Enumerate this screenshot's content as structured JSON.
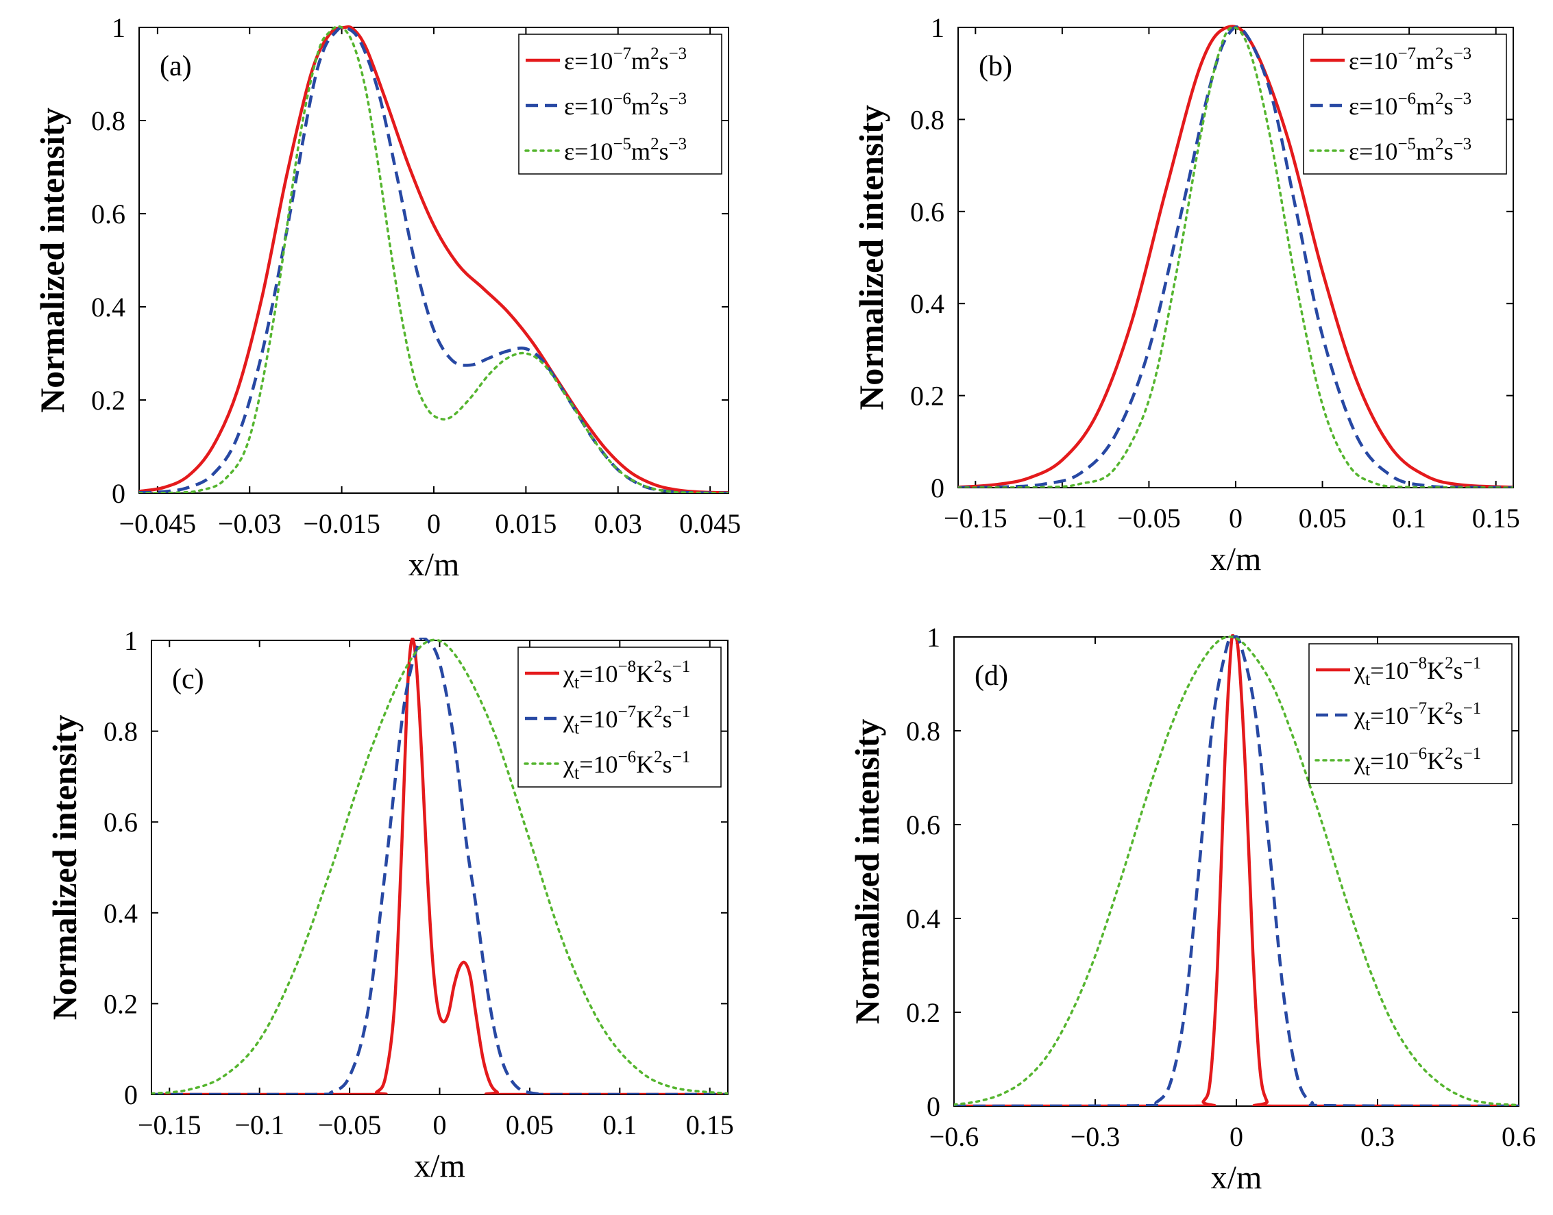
{
  "figure": {
    "title": ""
  },
  "colors": {
    "red": "#e41a1c",
    "blue": "#2748a3",
    "green": "#55b52f"
  },
  "chart_data": [
    {
      "type": "line",
      "panel_label": "(a)",
      "xlabel": "x/m",
      "ylabel": "Normalized intensity",
      "xlim": [
        -0.048,
        0.048
      ],
      "ylim": [
        0,
        1
      ],
      "xticks": [
        -0.045,
        -0.03,
        -0.015,
        0,
        0.015,
        0.03,
        0.045
      ],
      "xtick_labels": [
        "−0.045",
        "−0.03",
        "−0.015",
        "0",
        "0.015",
        "0.03",
        "0.045"
      ],
      "yticks": [
        0,
        0.2,
        0.4,
        0.6,
        0.8,
        1
      ],
      "ytick_labels": [
        "0",
        "0.2",
        "0.4",
        "0.6",
        "0.8",
        "1"
      ],
      "legend": {
        "location": "top-right"
      },
      "series": [
        {
          "name": "ε=10⁻⁷m²s⁻³",
          "legend": {
            "sym": "ε",
            "sub": "",
            "mid": "=10",
            "exp": "−7",
            "unit1": "m",
            "exp1": "2",
            "unit2": "s",
            "exp2": "−3"
          },
          "color": "#e41a1c",
          "dash": "solid",
          "x": [
            -0.048,
            -0.044,
            -0.04,
            -0.036,
            -0.032,
            -0.028,
            -0.024,
            -0.02,
            -0.017,
            -0.0145,
            -0.013,
            -0.011,
            -0.008,
            -0.004,
            0,
            0.004,
            0.008,
            0.012,
            0.016,
            0.02,
            0.024,
            0.028,
            0.032,
            0.036,
            0.04,
            0.044,
            0.048
          ],
          "y": [
            0.004,
            0.012,
            0.037,
            0.1,
            0.22,
            0.42,
            0.68,
            0.9,
            0.985,
            1.0,
            0.995,
            0.955,
            0.85,
            0.7,
            0.575,
            0.49,
            0.44,
            0.39,
            0.325,
            0.245,
            0.165,
            0.095,
            0.045,
            0.018,
            0.006,
            0.002,
            0.001
          ]
        },
        {
          "name": "ε=10⁻⁶m²s⁻³",
          "legend": {
            "sym": "ε",
            "sub": "",
            "mid": "=10",
            "exp": "−6",
            "unit1": "m",
            "exp1": "2",
            "unit2": "s",
            "exp2": "−3"
          },
          "color": "#2748a3",
          "dash": "dashed",
          "x": [
            -0.048,
            -0.044,
            -0.04,
            -0.036,
            -0.032,
            -0.028,
            -0.024,
            -0.02,
            -0.018,
            -0.016,
            -0.0145,
            -0.012,
            -0.009,
            -0.006,
            -0.003,
            0,
            0.003,
            0.006,
            0.009,
            0.012,
            0.015,
            0.018,
            0.022,
            0.026,
            0.03,
            0.034,
            0.038,
            0.042,
            0.048
          ],
          "y": [
            0.001,
            0.003,
            0.012,
            0.04,
            0.12,
            0.3,
            0.56,
            0.85,
            0.95,
            0.99,
            1.0,
            0.97,
            0.86,
            0.68,
            0.49,
            0.35,
            0.285,
            0.275,
            0.29,
            0.305,
            0.31,
            0.28,
            0.2,
            0.115,
            0.05,
            0.016,
            0.004,
            0.001,
            0.0
          ]
        },
        {
          "name": "ε=10⁻⁵m²s⁻³",
          "legend": {
            "sym": "ε",
            "sub": "",
            "mid": "=10",
            "exp": "−5",
            "unit1": "m",
            "exp1": "2",
            "unit2": "s",
            "exp2": "−3"
          },
          "color": "#55b52f",
          "dash": "dotted",
          "x": [
            -0.048,
            -0.042,
            -0.038,
            -0.034,
            -0.03,
            -0.026,
            -0.022,
            -0.019,
            -0.017,
            -0.015,
            -0.013,
            -0.011,
            -0.009,
            -0.007,
            -0.005,
            -0.003,
            -0.001,
            0.001,
            0.003,
            0.006,
            0.009,
            0.012,
            0.015,
            0.018,
            0.022,
            0.026,
            0.03,
            0.034,
            0.038,
            0.042,
            0.048
          ],
          "y": [
            0.0,
            0.001,
            0.006,
            0.03,
            0.12,
            0.38,
            0.75,
            0.94,
            0.99,
            1.0,
            0.96,
            0.86,
            0.7,
            0.52,
            0.36,
            0.24,
            0.18,
            0.16,
            0.165,
            0.205,
            0.255,
            0.29,
            0.3,
            0.275,
            0.2,
            0.115,
            0.05,
            0.017,
            0.004,
            0.001,
            0.0
          ]
        }
      ]
    },
    {
      "type": "line",
      "panel_label": "(b)",
      "xlabel": "x/m",
      "ylabel": "Normalized intensity",
      "xlim": [
        -0.16,
        0.16
      ],
      "ylim": [
        0,
        1
      ],
      "xticks": [
        -0.15,
        -0.1,
        -0.05,
        0,
        0.05,
        0.1,
        0.15
      ],
      "xtick_labels": [
        "−0.15",
        "−0.1",
        "−0.05",
        "0",
        "0.05",
        "0.1",
        "0.15"
      ],
      "yticks": [
        0,
        0.2,
        0.4,
        0.6,
        0.8,
        1
      ],
      "ytick_labels": [
        "0",
        "0.2",
        "0.4",
        "0.6",
        "0.8",
        "1"
      ],
      "legend": {
        "location": "top-right"
      },
      "series": [
        {
          "name": "ε=10⁻⁷m²s⁻³",
          "legend": {
            "sym": "ε",
            "sub": "",
            "mid": "=10",
            "exp": "−7",
            "unit1": "m",
            "exp1": "2",
            "unit2": "s",
            "exp2": "−3"
          },
          "color": "#e41a1c",
          "dash": "solid",
          "x": [
            -0.16,
            -0.14,
            -0.12,
            -0.1,
            -0.08,
            -0.06,
            -0.04,
            -0.02,
            -0.005,
            0.01,
            0.03,
            0.05,
            0.07,
            0.09,
            0.11,
            0.13,
            0.16
          ],
          "y": [
            0.001,
            0.006,
            0.02,
            0.06,
            0.16,
            0.36,
            0.65,
            0.92,
            1.0,
            0.96,
            0.76,
            0.47,
            0.23,
            0.085,
            0.025,
            0.006,
            0.001
          ]
        },
        {
          "name": "ε=10⁻⁶m²s⁻³",
          "legend": {
            "sym": "ε",
            "sub": "",
            "mid": "=10",
            "exp": "−6",
            "unit1": "m",
            "exp1": "2",
            "unit2": "s",
            "exp2": "−3"
          },
          "color": "#2748a3",
          "dash": "dashed",
          "x": [
            -0.16,
            -0.13,
            -0.11,
            -0.09,
            -0.07,
            -0.05,
            -0.03,
            -0.015,
            -0.005,
            0.005,
            0.02,
            0.035,
            0.05,
            0.07,
            0.09,
            0.11,
            0.13,
            0.16
          ],
          "y": [
            0.0,
            0.002,
            0.008,
            0.03,
            0.11,
            0.3,
            0.62,
            0.87,
            0.98,
            0.99,
            0.86,
            0.6,
            0.33,
            0.11,
            0.025,
            0.004,
            0.001,
            0.0
          ]
        },
        {
          "name": "ε=10⁻⁵m²s⁻³",
          "legend": {
            "sym": "ε",
            "sub": "",
            "mid": "=10",
            "exp": "−5",
            "unit1": "m",
            "exp1": "2",
            "unit2": "s",
            "exp2": "−3"
          },
          "color": "#55b52f",
          "dash": "dotted",
          "x": [
            -0.16,
            -0.11,
            -0.09,
            -0.07,
            -0.05,
            -0.035,
            -0.02,
            -0.01,
            -0.002,
            0.008,
            0.02,
            0.035,
            0.05,
            0.065,
            0.08,
            0.1,
            0.16
          ],
          "y": [
            0.0,
            0.001,
            0.008,
            0.04,
            0.19,
            0.45,
            0.77,
            0.94,
            1.0,
            0.95,
            0.76,
            0.44,
            0.18,
            0.05,
            0.01,
            0.001,
            0.0
          ]
        }
      ]
    },
    {
      "type": "line",
      "panel_label": "(c)",
      "xlabel": "x/m",
      "ylabel": "Normalized intensity",
      "xlim": [
        -0.16,
        0.16
      ],
      "ylim": [
        0,
        1
      ],
      "xticks": [
        -0.15,
        -0.1,
        -0.05,
        0,
        0.05,
        0.1,
        0.15
      ],
      "xtick_labels": [
        "−0.15",
        "−0.1",
        "−0.05",
        "0",
        "0.05",
        "0.1",
        "0.15"
      ],
      "yticks": [
        0,
        0.2,
        0.4,
        0.6,
        0.8,
        1
      ],
      "ytick_labels": [
        "0",
        "0.2",
        "0.4",
        "0.6",
        "0.8",
        "1"
      ],
      "legend": {
        "location": "top-right"
      },
      "series": [
        {
          "name": "χt=10⁻⁸K²s⁻¹",
          "legend": {
            "sym": "χ",
            "sub": "t",
            "mid": "=10",
            "exp": "−8",
            "unit1": "K",
            "exp1": "2",
            "unit2": "s",
            "exp2": "−1"
          },
          "color": "#e41a1c",
          "dash": "solid",
          "x": [
            -0.16,
            -0.04,
            -0.035,
            -0.03,
            -0.025,
            -0.021,
            -0.018,
            -0.0155,
            -0.013,
            -0.01,
            -0.007,
            -0.004,
            -0.001,
            0.002,
            0.005,
            0.008,
            0.011,
            0.014,
            0.017,
            0.02,
            0.024,
            0.028,
            0.032,
            0.036,
            0.16
          ],
          "y": [
            0.0,
            0.0,
            0.005,
            0.04,
            0.2,
            0.55,
            0.88,
            1.0,
            0.95,
            0.75,
            0.5,
            0.3,
            0.19,
            0.16,
            0.18,
            0.24,
            0.28,
            0.29,
            0.26,
            0.18,
            0.08,
            0.025,
            0.005,
            0.0,
            0.0
          ]
        },
        {
          "name": "χt=10⁻⁷K²s⁻¹",
          "legend": {
            "sym": "χ",
            "sub": "t",
            "mid": "=10",
            "exp": "−7",
            "unit1": "K",
            "exp1": "2",
            "unit2": "s",
            "exp2": "−1"
          },
          "color": "#2748a3",
          "dash": "dashed",
          "x": [
            -0.16,
            -0.07,
            -0.06,
            -0.05,
            -0.04,
            -0.03,
            -0.02,
            -0.012,
            -0.007,
            0,
            0.008,
            0.015,
            0.02,
            0.025,
            0.03,
            0.035,
            0.04,
            0.045,
            0.05,
            0.055,
            0.06,
            0.16
          ],
          "y": [
            0.0,
            0.0,
            0.005,
            0.04,
            0.18,
            0.5,
            0.85,
            0.99,
            1.0,
            0.95,
            0.78,
            0.55,
            0.42,
            0.27,
            0.15,
            0.07,
            0.03,
            0.01,
            0.004,
            0.001,
            0.0,
            0.0
          ]
        },
        {
          "name": "χt=10⁻⁶K²s⁻¹",
          "legend": {
            "sym": "χ",
            "sub": "t",
            "mid": "=10",
            "exp": "−6",
            "unit1": "K",
            "exp1": "2",
            "unit2": "s",
            "exp2": "−1"
          },
          "color": "#55b52f",
          "dash": "dotted",
          "x": [
            -0.16,
            -0.14,
            -0.12,
            -0.1,
            -0.08,
            -0.06,
            -0.04,
            -0.02,
            -0.005,
            0.01,
            0.03,
            0.05,
            0.07,
            0.09,
            0.11,
            0.13,
            0.16
          ],
          "y": [
            0.002,
            0.01,
            0.04,
            0.12,
            0.28,
            0.5,
            0.74,
            0.93,
            1.0,
            0.96,
            0.8,
            0.56,
            0.32,
            0.15,
            0.055,
            0.015,
            0.002
          ]
        }
      ]
    },
    {
      "type": "line",
      "panel_label": "(d)",
      "xlabel": "x/m",
      "ylabel": "Normalized intensity",
      "xlim": [
        -0.6,
        0.6
      ],
      "ylim": [
        0,
        1
      ],
      "xticks": [
        -0.6,
        -0.3,
        0,
        0.3,
        0.6
      ],
      "xtick_labels": [
        "−0.6",
        "−0.3",
        "0",
        "0.3",
        "0.6"
      ],
      "yticks": [
        0,
        0.2,
        0.4,
        0.6,
        0.8,
        1
      ],
      "ytick_labels": [
        "0",
        "0.2",
        "0.4",
        "0.6",
        "0.8",
        "1"
      ],
      "legend": {
        "location": "top-right"
      },
      "series": [
        {
          "name": "χt=10⁻⁸K²s⁻¹",
          "legend": {
            "sym": "χ",
            "sub": "t",
            "mid": "=10",
            "exp": "−8",
            "unit1": "K",
            "exp1": "2",
            "unit2": "s",
            "exp2": "−1"
          },
          "color": "#e41a1c",
          "dash": "solid",
          "x": [
            -0.6,
            -0.09,
            -0.07,
            -0.055,
            -0.04,
            -0.025,
            -0.012,
            -0.005,
            0.005,
            0.02,
            0.035,
            0.05,
            0.065,
            0.08,
            0.6
          ],
          "y": [
            0.0,
            0.0,
            0.01,
            0.06,
            0.3,
            0.72,
            0.97,
            1.0,
            0.96,
            0.7,
            0.33,
            0.08,
            0.01,
            0.0,
            0.0
          ]
        },
        {
          "name": "χt=10⁻⁷K²s⁻¹",
          "legend": {
            "sym": "χ",
            "sub": "t",
            "mid": "=10",
            "exp": "−7",
            "unit1": "K",
            "exp1": "2",
            "unit2": "s",
            "exp2": "−1"
          },
          "color": "#2748a3",
          "dash": "dashed",
          "x": [
            -0.6,
            -0.2,
            -0.17,
            -0.14,
            -0.11,
            -0.08,
            -0.05,
            -0.02,
            -0.005,
            0.01,
            0.04,
            0.07,
            0.1,
            0.13,
            0.16,
            0.2,
            0.6
          ],
          "y": [
            0.0,
            0.001,
            0.008,
            0.05,
            0.2,
            0.5,
            0.82,
            0.98,
            1.0,
            0.98,
            0.84,
            0.55,
            0.24,
            0.06,
            0.008,
            0.001,
            0.0
          ]
        },
        {
          "name": "χt=10⁻⁶K²s⁻¹",
          "legend": {
            "sym": "χ",
            "sub": "t",
            "mid": "=10",
            "exp": "−6",
            "unit1": "K",
            "exp1": "2",
            "unit2": "s",
            "exp2": "−1"
          },
          "color": "#55b52f",
          "dash": "dotted",
          "x": [
            -0.6,
            -0.55,
            -0.5,
            -0.45,
            -0.4,
            -0.35,
            -0.3,
            -0.25,
            -0.2,
            -0.15,
            -0.1,
            -0.05,
            -0.01,
            0.03,
            0.08,
            0.13,
            0.18,
            0.23,
            0.28,
            0.33,
            0.38,
            0.43,
            0.48,
            0.53,
            0.6
          ],
          "y": [
            0.003,
            0.01,
            0.025,
            0.055,
            0.11,
            0.2,
            0.32,
            0.47,
            0.63,
            0.78,
            0.9,
            0.98,
            1.0,
            0.97,
            0.89,
            0.76,
            0.61,
            0.45,
            0.3,
            0.18,
            0.1,
            0.05,
            0.02,
            0.007,
            0.002
          ]
        }
      ]
    }
  ]
}
